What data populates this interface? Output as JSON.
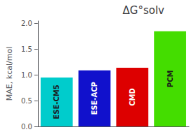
{
  "chart_data": {
    "type": "bar",
    "title": "ΔG°solv",
    "ylabel": "MAE, kcal/mol",
    "categories": [
      "ESE-CM5",
      "ESE-ACP",
      "CMD",
      "PCM"
    ],
    "values": [
      0.95,
      1.09,
      1.14,
      1.85
    ],
    "colors": [
      "#00CCCC",
      "#1111CC",
      "#DD0000",
      "#44DD00"
    ],
    "ylim": [
      0,
      2.05
    ],
    "yticks": [
      {
        "value": 0,
        "label": "0.0"
      },
      0.5,
      {
        "value": 1,
        "label": "1.0"
      },
      1.5,
      {
        "value": 2,
        "label": "2.0"
      }
    ],
    "grid": false,
    "tick_labels": "y"
  }
}
